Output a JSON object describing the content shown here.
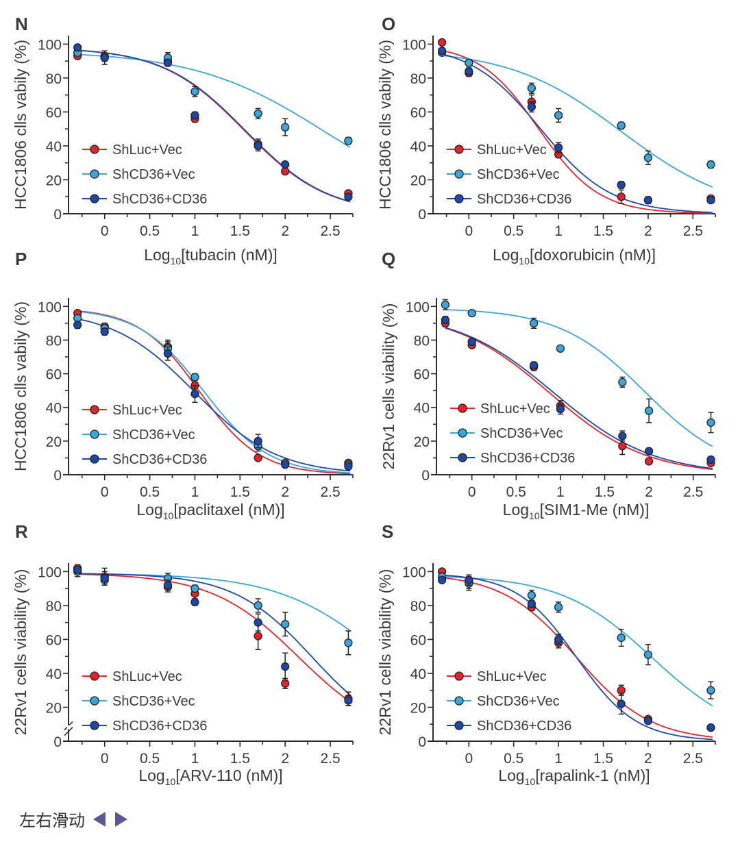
{
  "legend_labels": [
    "ShLuc+Vec",
    "ShCD36+Vec",
    "ShCD36+CD36"
  ],
  "colors": {
    "ShLuc+Vec": "#e3242b",
    "ShCD36+Vec": "#39a6dc",
    "ShCD36+CD36": "#1f47a6",
    "axis": "#2b2b2b",
    "text": "#3a3a3a",
    "nav_arrow": "#5b5a96"
  },
  "footer": {
    "label": "左右滑动",
    "prev_icon": "triangle-left",
    "next_icon": "triangle-right"
  },
  "chart_data": [
    {
      "panel": "N",
      "type": "scatter",
      "title": "",
      "xlabel_prefix": "Log",
      "xlabel_sub": "10",
      "xlabel_rest": "[tubacin (nM)]",
      "ylabel": "HCC1806 clls vabily (%)",
      "xlim": [
        -0.4,
        2.75
      ],
      "ylim": [
        0,
        105
      ],
      "xticks": [
        0,
        0.5,
        1,
        1.5,
        2,
        2.5
      ],
      "yticks": [
        0,
        20,
        40,
        60,
        80,
        100
      ],
      "axis_break": false,
      "legend_position": "lower-left",
      "x": [
        -0.3,
        0,
        0.7,
        1,
        1.7,
        2,
        2.7
      ],
      "series": [
        {
          "name": "ShLuc+Vec",
          "values": [
            93,
            93,
            90,
            56,
            41,
            25,
            12
          ],
          "errors": [
            1,
            3,
            2,
            2,
            3,
            1,
            1
          ],
          "fit": {
            "top": 98,
            "bottom": 0,
            "ic50_log": 1.55,
            "hill": 0.95
          }
        },
        {
          "name": "ShCD36+Vec",
          "values": [
            95,
            92,
            92,
            72,
            59,
            51,
            43
          ],
          "errors": [
            1,
            4,
            3,
            3,
            3,
            5,
            2
          ],
          "fit": {
            "top": 96,
            "bottom": 0,
            "ic50_log": 2.45,
            "hill": 0.6
          }
        },
        {
          "name": "ShCD36+CD36",
          "values": [
            98,
            92,
            89,
            58,
            40,
            29,
            10
          ],
          "errors": [
            1,
            2,
            2,
            2,
            3,
            1,
            1
          ],
          "fit": {
            "top": 98,
            "bottom": 0,
            "ic50_log": 1.56,
            "hill": 0.95
          }
        }
      ]
    },
    {
      "panel": "O",
      "type": "scatter",
      "title": "",
      "xlabel_prefix": "Log",
      "xlabel_sub": "10",
      "xlabel_rest": "[doxorubicin (nM)]",
      "ylabel": "HCC1806 clls vabily (%)",
      "xlim": [
        -0.4,
        2.75
      ],
      "ylim": [
        0,
        105
      ],
      "xticks": [
        0,
        0.5,
        1,
        1.5,
        2,
        2.5
      ],
      "yticks": [
        0,
        20,
        40,
        60,
        80,
        100
      ],
      "axis_break": false,
      "legend_position": "lower-left",
      "x": [
        -0.3,
        0,
        0.7,
        1,
        1.7,
        2,
        2.7
      ],
      "series": [
        {
          "name": "ShLuc+Vec",
          "values": [
            101,
            83,
            66,
            35,
            10,
            8,
            9
          ],
          "errors": [
            1,
            2,
            4,
            2,
            4,
            2,
            1
          ],
          "fit": {
            "top": 100,
            "bottom": 0,
            "ic50_log": 0.78,
            "hill": 1.3
          }
        },
        {
          "name": "ShCD36+Vec",
          "values": [
            95,
            89,
            74,
            58,
            52,
            33,
            29
          ],
          "errors": [
            1,
            2,
            3,
            4,
            2,
            4,
            2
          ],
          "fit": {
            "top": 97,
            "bottom": 0,
            "ic50_log": 1.7,
            "hill": 0.7
          }
        },
        {
          "name": "ShCD36+CD36",
          "values": [
            96,
            84,
            63,
            39,
            17,
            8,
            8
          ],
          "errors": [
            1,
            2,
            3,
            3,
            2,
            2,
            1
          ],
          "fit": {
            "top": 100,
            "bottom": 0,
            "ic50_log": 0.8,
            "hill": 1.1
          }
        }
      ]
    },
    {
      "panel": "P",
      "type": "scatter",
      "title": "",
      "xlabel_prefix": "Log",
      "xlabel_sub": "10",
      "xlabel_rest": "[paclitaxel (nM)]",
      "ylabel": "HCC1806 clls vabily (%)",
      "xlim": [
        -0.4,
        2.75
      ],
      "ylim": [
        0,
        105
      ],
      "xticks": [
        0,
        0.5,
        1,
        1.5,
        2,
        2.5
      ],
      "yticks": [
        0,
        20,
        40,
        60,
        80,
        100
      ],
      "axis_break": false,
      "legend_position": "lower-left",
      "x": [
        -0.3,
        0,
        0.7,
        1,
        1.7,
        2,
        2.7
      ],
      "series": [
        {
          "name": "ShLuc+Vec",
          "values": [
            96,
            88,
            76,
            53,
            10,
            7,
            7
          ],
          "errors": [
            1,
            2,
            4,
            2,
            1,
            1,
            1
          ],
          "fit": {
            "top": 99,
            "bottom": 0,
            "ic50_log": 1.05,
            "hill": 1.3
          }
        },
        {
          "name": "ShCD36+Vec",
          "values": [
            93,
            87,
            75,
            58,
            17,
            7,
            6
          ],
          "errors": [
            1,
            2,
            4,
            2,
            3,
            1,
            1
          ],
          "fit": {
            "top": 99,
            "bottom": 0,
            "ic50_log": 1.1,
            "hill": 1.2
          }
        },
        {
          "name": "ShCD36+CD36",
          "values": [
            89,
            85,
            72,
            48,
            20,
            6,
            5
          ],
          "errors": [
            2,
            2,
            4,
            5,
            4,
            1,
            1
          ],
          "fit": {
            "top": 98,
            "bottom": 0,
            "ic50_log": 1.0,
            "hill": 0.95
          }
        }
      ]
    },
    {
      "panel": "Q",
      "type": "scatter",
      "title": "",
      "xlabel_prefix": "Log",
      "xlabel_sub": "10",
      "xlabel_rest": "[SIM1-Me (nM)]",
      "ylabel": "22Rv1 cells viability (%)",
      "xlim": [
        -0.4,
        2.75
      ],
      "ylim": [
        0,
        105
      ],
      "xticks": [
        0,
        0.5,
        1,
        1.5,
        2,
        2.5
      ],
      "yticks": [
        0,
        20,
        40,
        60,
        80,
        100
      ],
      "axis_break": false,
      "legend_position": "lower-left",
      "x": [
        -0.3,
        0,
        0.7,
        1,
        1.7,
        2,
        2.7
      ],
      "series": [
        {
          "name": "ShLuc+Vec",
          "values": [
            90,
            77,
            64,
            41,
            17,
            8,
            7
          ],
          "errors": [
            2,
            1,
            2,
            3,
            5,
            1,
            1
          ],
          "fit": {
            "top": 97,
            "bottom": 0,
            "ic50_log": 0.88,
            "hill": 0.8
          }
        },
        {
          "name": "ShCD36+Vec",
          "values": [
            101,
            96,
            90,
            75,
            55,
            38,
            31
          ],
          "errors": [
            3,
            1,
            3,
            1,
            3,
            7,
            6
          ],
          "fit": {
            "top": 99,
            "bottom": 0,
            "ic50_log": 1.95,
            "hill": 0.9
          }
        },
        {
          "name": "ShCD36+CD36",
          "values": [
            92,
            79,
            65,
            39,
            23,
            14,
            9
          ],
          "errors": [
            2,
            1,
            2,
            3,
            3,
            1,
            1
          ],
          "fit": {
            "top": 97,
            "bottom": 0,
            "ic50_log": 0.93,
            "hill": 0.78
          }
        }
      ]
    },
    {
      "panel": "R",
      "type": "scatter",
      "title": "",
      "xlabel_prefix": "Log",
      "xlabel_sub": "10",
      "xlabel_rest": "[ARV-110 (nM)]",
      "ylabel": "22Rv1 cells viability (%)",
      "xlim": [
        -0.4,
        2.75
      ],
      "ylim": [
        0,
        105
      ],
      "xticks": [
        0,
        0.5,
        1,
        1.5,
        2,
        2.5
      ],
      "yticks": [
        0,
        20,
        40,
        60,
        80,
        100
      ],
      "ytick_labels_shown": [
        0,
        20,
        40,
        60,
        80,
        100
      ],
      "axis_break": true,
      "legend_position": "lower-left",
      "x": [
        -0.3,
        0,
        0.7,
        1,
        1.7,
        2,
        2.7
      ],
      "series": [
        {
          "name": "ShLuc+Vec",
          "values": [
            102,
            97,
            91,
            87,
            62,
            34,
            25
          ],
          "errors": [
            2,
            5,
            3,
            3,
            8,
            3,
            4
          ],
          "fit": {
            "top": 99,
            "bottom": 0,
            "ic50_log": 2.15,
            "hill": 0.9
          }
        },
        {
          "name": "ShCD36+Vec",
          "values": [
            100,
            95,
            96,
            90,
            80,
            69,
            58
          ],
          "errors": [
            3,
            3,
            3,
            2,
            4,
            7,
            7
          ],
          "fit": {
            "top": 99,
            "bottom": 0,
            "ic50_log": 3.1,
            "hill": 0.75
          }
        },
        {
          "name": "ShCD36+CD36",
          "values": [
            101,
            96,
            92,
            82,
            70,
            44,
            24
          ],
          "errors": [
            2,
            4,
            3,
            2,
            5,
            8,
            3
          ],
          "fit": {
            "top": 99,
            "bottom": 0,
            "ic50_log": 2.3,
            "hill": 1.0
          }
        }
      ]
    },
    {
      "panel": "S",
      "type": "scatter",
      "title": "",
      "xlabel_prefix": "Log",
      "xlabel_sub": "10",
      "xlabel_rest": "[rapalink-1 (nM)]",
      "ylabel": "22Rv1 cells viability (%)",
      "xlim": [
        -0.4,
        2.75
      ],
      "ylim": [
        0,
        105
      ],
      "xticks": [
        0,
        0.5,
        1,
        1.5,
        2,
        2.5
      ],
      "yticks": [
        0,
        20,
        40,
        60,
        80,
        100
      ],
      "axis_break": false,
      "legend_position": "lower-left",
      "x": [
        -0.3,
        0,
        0.7,
        1,
        1.7,
        2,
        2.7
      ],
      "series": [
        {
          "name": "ShLuc+Vec",
          "values": [
            100,
            94,
            79,
            58,
            30,
            13,
            8
          ],
          "errors": [
            1,
            4,
            2,
            3,
            3,
            1,
            1
          ],
          "fit": {
            "top": 99,
            "bottom": 0,
            "ic50_log": 1.2,
            "hill": 1.05
          }
        },
        {
          "name": "ShCD36+Vec",
          "values": [
            97,
            93,
            86,
            79,
            61,
            51,
            30
          ],
          "errors": [
            2,
            4,
            3,
            3,
            5,
            6,
            5
          ],
          "fit": {
            "top": 98,
            "bottom": 0,
            "ic50_log": 2.05,
            "hill": 0.85
          }
        },
        {
          "name": "ShCD36+CD36",
          "values": [
            95,
            95,
            81,
            60,
            22,
            12,
            8
          ],
          "errors": [
            1,
            3,
            2,
            3,
            6,
            1,
            1
          ],
          "fit": {
            "top": 99,
            "bottom": 0,
            "ic50_log": 1.2,
            "hill": 1.3
          }
        }
      ]
    }
  ]
}
